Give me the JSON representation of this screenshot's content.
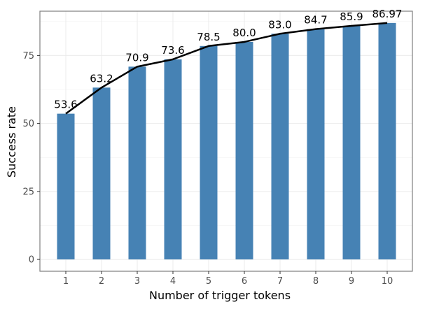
{
  "chart_data": {
    "type": "bar",
    "title": "",
    "xlabel": "Number of trigger tokens",
    "ylabel": "Success rate",
    "categories": [
      "1",
      "2",
      "3",
      "4",
      "5",
      "6",
      "7",
      "8",
      "9",
      "10"
    ],
    "values": [
      53.6,
      63.2,
      70.9,
      73.6,
      78.5,
      80.0,
      83.0,
      84.7,
      85.9,
      86.97
    ],
    "data_labels": [
      "53.6",
      "63.2",
      "70.9",
      "73.6",
      "78.5",
      "80.0",
      "83.0",
      "84.7",
      "85.9",
      "86.97"
    ],
    "yticks": [
      0,
      25,
      50,
      75
    ],
    "ylim": [
      -4.35,
      91.3
    ],
    "grid": true,
    "overlay_line": true,
    "colors": {
      "bar": "#4682b4",
      "line": "#000000",
      "grid": "#ebebeb",
      "border": "#7f7f7f"
    }
  }
}
